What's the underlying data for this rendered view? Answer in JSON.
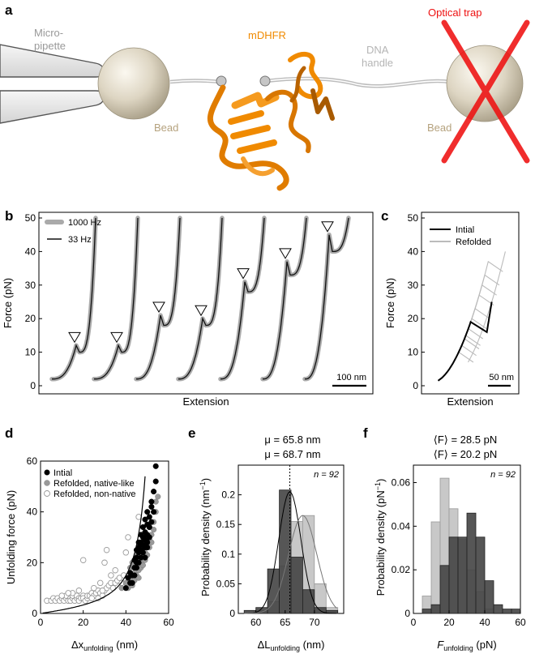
{
  "panel_a": {
    "letter": "a",
    "labels": {
      "micropipette_line1": "Micro-",
      "micropipette_line2": "pipette",
      "bead_left": "Bead",
      "protein": "mDHFR",
      "dna_line1": "DNA",
      "dna_line2": "handle",
      "bead_right": "Bead",
      "optical_trap": "Optical trap"
    },
    "colors": {
      "protein": "#f08a00",
      "bead": "#d8d0bc",
      "trap": "#ee1111",
      "dna": "#b8b8b8",
      "bead_label": "#b5a27e"
    }
  },
  "chart_data": [
    {
      "panel": "b",
      "type": "line",
      "ylabel": "Force (pN)",
      "xlabel": "Extension",
      "ylim": [
        0,
        50
      ],
      "yticks": [
        0,
        10,
        20,
        30,
        40,
        50
      ],
      "legend": [
        "1000 Hz",
        "33 Hz"
      ],
      "legend_position": "top-left",
      "scale_bar": "100 nm",
      "series_colors": {
        "1000 Hz": "#aaaaaa",
        "33 Hz": "#111111"
      },
      "traces": [
        {
          "peak": 12,
          "drop": 10,
          "end": 50
        },
        {
          "peak": 12,
          "drop": 10,
          "end": 50
        },
        {
          "peak": 21,
          "drop": 18,
          "end": 50
        },
        {
          "peak": 20,
          "drop": 18,
          "end": 50
        },
        {
          "peak": 31,
          "drop": 28,
          "end": 50
        },
        {
          "peak": 37,
          "drop": 33,
          "end": 50
        },
        {
          "peak": 45,
          "drop": 40,
          "end": 50
        }
      ]
    },
    {
      "panel": "c",
      "type": "line",
      "ylabel": "Force (pN)",
      "xlabel": "Extension",
      "ylim": [
        0,
        50
      ],
      "yticks": [
        0,
        10,
        20,
        30,
        40,
        50
      ],
      "legend": [
        "Intial",
        "Refolded"
      ],
      "legend_position": "top-left",
      "scale_bar": "50 nm",
      "series_colors": {
        "Intial": "#000000",
        "Refolded": "#bbbbbb"
      },
      "initial_trace": {
        "peak": 19,
        "drop": 16,
        "end": 25
      },
      "refolded_peaks": [
        10,
        12,
        14,
        15,
        17,
        20,
        23,
        27,
        30,
        33,
        37
      ]
    },
    {
      "panel": "d",
      "type": "scatter",
      "xlabel": "Δx",
      "xlabel_sub": "unfolding",
      "xlabel_unit": " (nm)",
      "ylabel": "Unfolding force (pN)",
      "xlim": [
        0,
        60
      ],
      "ylim": [
        0,
        60
      ],
      "xticks": [
        0,
        20,
        40,
        60
      ],
      "yticks": [
        0,
        20,
        40,
        60
      ],
      "legend": [
        "Intial",
        "Refolded, native-like",
        "Refolded, non-native"
      ],
      "legend_position": "top-left",
      "series": [
        {
          "name": "Intial",
          "points": [
            [
              40,
              10
            ],
            [
              42,
              12
            ],
            [
              43,
              15
            ],
            [
              44,
              18
            ],
            [
              45,
              20
            ],
            [
              45,
              22
            ],
            [
              46,
              24
            ],
            [
              46,
              26
            ],
            [
              47,
              25
            ],
            [
              47,
              28
            ],
            [
              48,
              30
            ],
            [
              48,
              27
            ],
            [
              49,
              32
            ],
            [
              49,
              29
            ],
            [
              50,
              35
            ],
            [
              50,
              31
            ],
            [
              51,
              38
            ],
            [
              51,
              34
            ],
            [
              52,
              42
            ],
            [
              52,
              44
            ],
            [
              53,
              48
            ],
            [
              54,
              52
            ],
            [
              54,
              58
            ],
            [
              44,
              15
            ],
            [
              43,
              12
            ],
            [
              45,
              18
            ],
            [
              46,
              20
            ],
            [
              47,
              22
            ],
            [
              48,
              24
            ],
            [
              49,
              26
            ],
            [
              50,
              28
            ],
            [
              50,
              40
            ],
            [
              51,
              30
            ],
            [
              52,
              36
            ],
            [
              53,
              40
            ],
            [
              41,
              14
            ],
            [
              42,
              16
            ],
            [
              44,
              21
            ],
            [
              45,
              25
            ],
            [
              46,
              28
            ],
            [
              47,
              31
            ],
            [
              48,
              34
            ],
            [
              49,
              37
            ],
            [
              49,
              22
            ],
            [
              50,
              26
            ]
          ]
        },
        {
          "name": "Refolded, native-like",
          "points": [
            [
              38,
              10
            ],
            [
              40,
              12
            ],
            [
              41,
              10
            ],
            [
              42,
              14
            ],
            [
              43,
              11
            ],
            [
              44,
              13
            ],
            [
              44,
              16
            ],
            [
              45,
              15
            ],
            [
              46,
              17
            ],
            [
              46,
              14
            ],
            [
              47,
              18
            ],
            [
              47,
              20
            ],
            [
              48,
              19
            ],
            [
              48,
              22
            ],
            [
              49,
              21
            ],
            [
              49,
              24
            ],
            [
              50,
              23
            ],
            [
              50,
              27
            ],
            [
              51,
              26
            ],
            [
              51,
              29
            ],
            [
              52,
              31
            ],
            [
              52,
              28
            ],
            [
              53,
              33
            ],
            [
              53,
              36
            ],
            [
              54,
              40
            ],
            [
              54,
              44
            ],
            [
              55,
              46
            ],
            [
              42,
              18
            ],
            [
              43,
              20
            ],
            [
              45,
              23
            ],
            [
              47,
              26
            ],
            [
              49,
              30
            ],
            [
              51,
              34
            ]
          ]
        },
        {
          "name": "Refolded, non-native",
          "points": [
            [
              3,
              5
            ],
            [
              5,
              5
            ],
            [
              6,
              6
            ],
            [
              7,
              5
            ],
            [
              8,
              6
            ],
            [
              9,
              5
            ],
            [
              10,
              6
            ],
            [
              11,
              5
            ],
            [
              12,
              6
            ],
            [
              12,
              7
            ],
            [
              13,
              5
            ],
            [
              14,
              6
            ],
            [
              14,
              5
            ],
            [
              15,
              6
            ],
            [
              15,
              7
            ],
            [
              16,
              5
            ],
            [
              17,
              6
            ],
            [
              17,
              7
            ],
            [
              18,
              6
            ],
            [
              18,
              5
            ],
            [
              19,
              6
            ],
            [
              20,
              7
            ],
            [
              20,
              6
            ],
            [
              21,
              5
            ],
            [
              22,
              6
            ],
            [
              22,
              7
            ],
            [
              23,
              7
            ],
            [
              24,
              8
            ],
            [
              25,
              7
            ],
            [
              26,
              8
            ],
            [
              27,
              9
            ],
            [
              28,
              8
            ],
            [
              29,
              7
            ],
            [
              30,
              9
            ],
            [
              31,
              10
            ],
            [
              32,
              11
            ],
            [
              33,
              12
            ],
            [
              34,
              10
            ],
            [
              35,
              12
            ],
            [
              36,
              13
            ],
            [
              37,
              14
            ],
            [
              38,
              12
            ],
            [
              39,
              15
            ],
            [
              20,
              21
            ],
            [
              30,
              20
            ],
            [
              31,
              25
            ],
            [
              40,
              24
            ],
            [
              41,
              30
            ],
            [
              46,
              38
            ],
            [
              15,
              8
            ],
            [
              18,
              9
            ],
            [
              25,
              10
            ],
            [
              28,
              12
            ],
            [
              33,
              15
            ],
            [
              35,
              17
            ],
            [
              27,
              6
            ],
            [
              10,
              7
            ],
            [
              13,
              8
            ],
            [
              24,
              6
            ],
            [
              29,
              9
            ]
          ]
        }
      ],
      "fit_curve": true
    },
    {
      "panel": "e",
      "type": "bar",
      "title_initial": "μ = 65.8 nm",
      "title_refolded": "μ = 68.7 nm",
      "xlabel": "ΔL",
      "xlabel_sub": "unfolding",
      "xlabel_unit": " (nm)",
      "ylabel": "Probability density (nm",
      "ylabel_sup": "−1",
      "ylabel_end": ")",
      "n_label": "n = 92",
      "xlim": [
        57,
        75
      ],
      "ylim": [
        0,
        0.25
      ],
      "xticks": [
        60,
        65,
        70
      ],
      "yticks": [
        0,
        0.05,
        0.1,
        0.15,
        0.2
      ],
      "ytick_labels": [
        "0",
        "0.05",
        "0.1",
        "0.15",
        "0.2"
      ],
      "bin_edges": [
        58,
        60,
        62,
        64,
        66,
        68,
        70,
        72,
        74
      ],
      "series": [
        {
          "name": "Initial",
          "values": [
            0.005,
            0.01,
            0.075,
            0.208,
            0.095,
            0.04,
            0.01,
            0.005
          ]
        },
        {
          "name": "Refolded",
          "values": [
            0,
            0.005,
            0.02,
            0.08,
            0.155,
            0.165,
            0.05,
            0.01
          ]
        }
      ],
      "mean_line": 65.8
    },
    {
      "panel": "f",
      "type": "bar",
      "title_initial": "⟨F⟩ = 28.5 pN",
      "title_refolded": "⟨F⟩ = 20.2 pN",
      "xlabel": "F",
      "xlabel_sub": "unfolding",
      "xlabel_unit": " (pN)",
      "ylabel": "Probability density (pN",
      "ylabel_sup": "−1",
      "ylabel_end": ")",
      "n_label": "n = 92",
      "xlim": [
        0,
        60
      ],
      "ylim": [
        0,
        0.068
      ],
      "xticks": [
        0,
        20,
        40,
        60
      ],
      "yticks": [
        0,
        0.02,
        0.04,
        0.06
      ],
      "ytick_labels": [
        "0",
        "0.02",
        "0.04",
        "0.06"
      ],
      "bin_edges": [
        5,
        10,
        15,
        20,
        25,
        30,
        35,
        40,
        45,
        50,
        55,
        60
      ],
      "series": [
        {
          "name": "Initial",
          "values": [
            0.002,
            0.004,
            0.022,
            0.035,
            0.035,
            0.046,
            0.035,
            0.015,
            0.004,
            0.002,
            0.002
          ]
        },
        {
          "name": "Refolded",
          "values": [
            0.008,
            0.042,
            0.062,
            0.048,
            0.034,
            0.02,
            0.01,
            0.002,
            0,
            0,
            0
          ]
        }
      ]
    }
  ]
}
